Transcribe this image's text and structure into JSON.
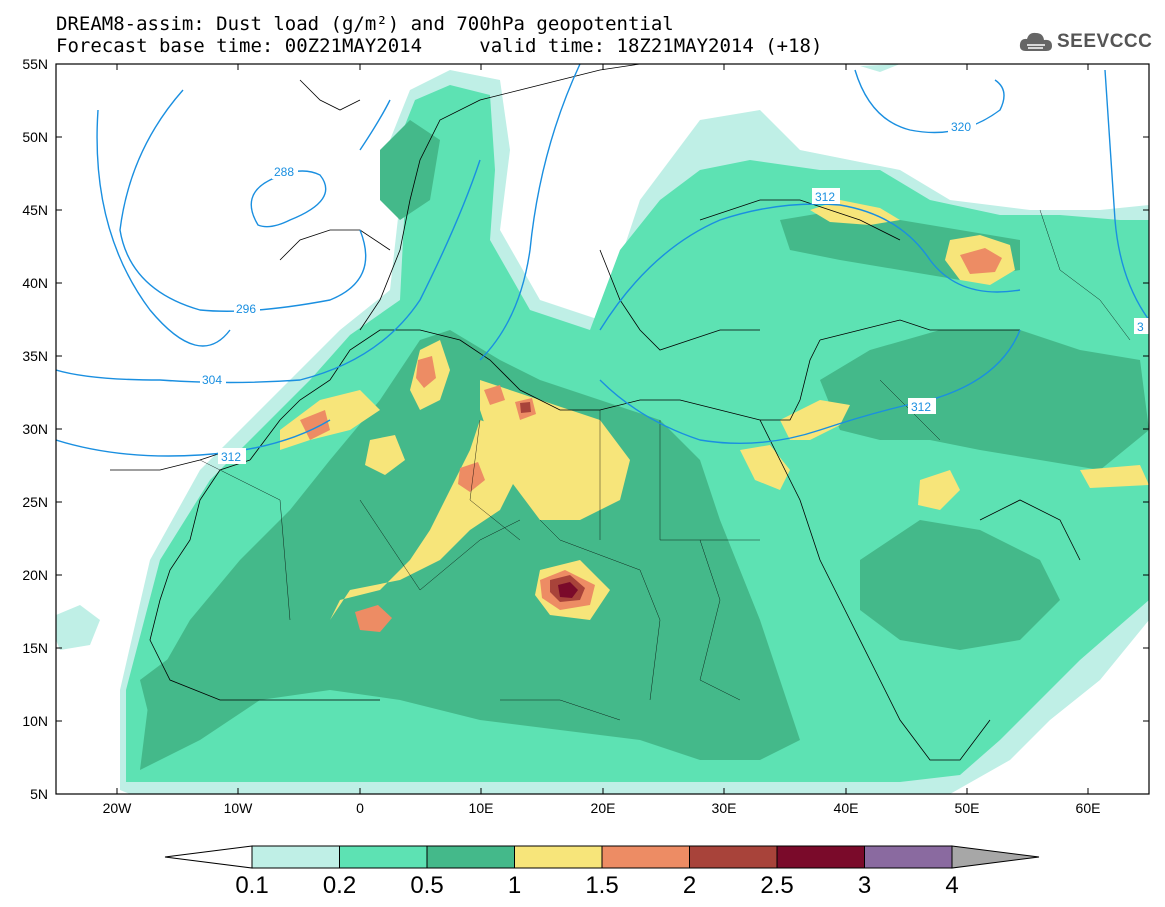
{
  "title": {
    "line1": "DREAM8-assim: Dust load (g/m²) and 700hPa geopotential",
    "line2_left": "Forecast base time: 00Z21MAY2014",
    "line2_right": "valid time: 18Z21MAY2014 (+18)"
  },
  "logo": {
    "text": "SEEVCCC",
    "icon": "cloud-icon"
  },
  "map": {
    "lon_range": [
      -25,
      65
    ],
    "lat_range": [
      5,
      55
    ],
    "x_ticks": [
      "20W",
      "10W",
      "0",
      "10E",
      "20E",
      "30E",
      "40E",
      "50E",
      "60E"
    ],
    "y_ticks": [
      "55N",
      "50N",
      "45N",
      "40N",
      "35N",
      "30N",
      "25N",
      "20N",
      "15N",
      "10N",
      "5N"
    ],
    "contour_labels": [
      "288",
      "296",
      "304",
      "312",
      "312",
      "312",
      "320",
      "3"
    ]
  },
  "colorbar": {
    "labels": [
      "0.1",
      "0.2",
      "0.5",
      "1",
      "1.5",
      "2",
      "2.5",
      "3",
      "4"
    ],
    "colors": [
      "#bfefe6",
      "#5de2b3",
      "#44b98a",
      "#f7e57a",
      "#ed8c64",
      "#a8433a",
      "#7a0a2a",
      "#8a6aa0",
      "#a7a7a7"
    ]
  }
}
